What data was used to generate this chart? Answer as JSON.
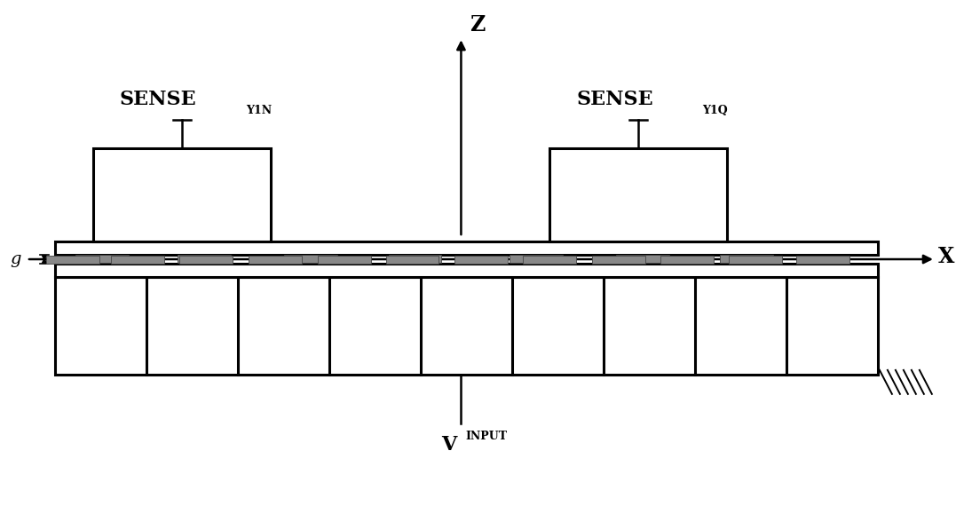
{
  "bg_color": "#ffffff",
  "line_color": "#000000",
  "gray_color": "#808080",
  "lw": 2.2,
  "lw_thin": 1.4,
  "lw_med": 1.8,
  "fig_w": 10.77,
  "fig_h": 5.97,
  "z_label": "Z",
  "x_label": "X",
  "vinput_label": "V",
  "vinput_sub": "INPUT",
  "sense_y1n_main": "SENSE",
  "sense_y1n_sub": "Y1N",
  "sense_y1q_main": "SENSE",
  "sense_y1q_sub": "Y1Q",
  "gap_label": "g"
}
